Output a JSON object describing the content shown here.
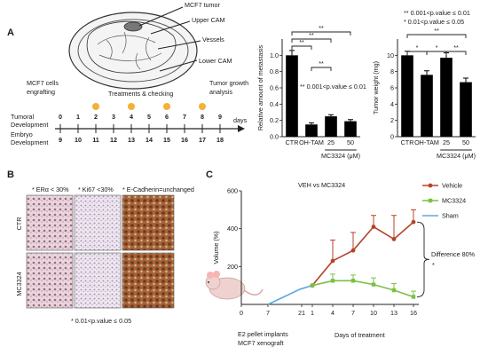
{
  "panel_labels": {
    "a": "A",
    "b": "B",
    "c": "C"
  },
  "diagram": {
    "labels": {
      "tumor": "MCF7 tumor",
      "upper": "Upper CAM",
      "vessels": "Vessels",
      "lower": "Lower CAM"
    }
  },
  "timeline": {
    "event1": "MCF7 cells",
    "event1b": "engrafting",
    "event2": "Treatments & checking",
    "event3": "Tumor growth",
    "event3b": "analysis",
    "row1_label": "Tumoral",
    "row1_label_b": "Development",
    "row2_label": "Embryo",
    "row2_label_b": "Development",
    "unit": "days",
    "tumoral_days": [
      "0",
      "1",
      "2",
      "3",
      "4",
      "5",
      "6",
      "7",
      "8",
      "9"
    ],
    "embryo_days": [
      "9",
      "10",
      "11",
      "12",
      "13",
      "14",
      "15",
      "16",
      "17",
      "18"
    ],
    "dots_at_index": [
      2,
      4,
      6,
      8
    ]
  },
  "chart_data": [
    {
      "type": "bar",
      "ylabel": "Relative amount of metastasis",
      "categories": [
        "CTR",
        "OH-TAM",
        "25",
        "50"
      ],
      "group_label": "MC3324 (μM)",
      "values": [
        1.0,
        0.15,
        0.25,
        0.19
      ],
      "errors": [
        0.06,
        0.02,
        0.02,
        0.02
      ],
      "ylim": [
        0,
        1.2
      ],
      "yticks": [
        "0.0",
        "0.2",
        "0.4",
        "0.6",
        "0.8",
        "1.0"
      ],
      "color": "#000000",
      "significance": [
        "**",
        "**",
        "**",
        "**"
      ],
      "annotation": "** 0.001<p.value ≤ 0.01"
    },
    {
      "type": "bar",
      "ylabel": "Tumor weight (mg)",
      "categories": [
        "CTR",
        "OH-TAM",
        "25",
        "50"
      ],
      "group_label": "MC3324 (μM)",
      "values": [
        10.0,
        7.6,
        9.7,
        6.7
      ],
      "errors": [
        0.5,
        0.5,
        0.6,
        0.5
      ],
      "ylim": [
        0,
        12
      ],
      "yticks": [
        "0",
        "2",
        "4",
        "6",
        "8",
        "10"
      ],
      "color": "#000000",
      "significance": [
        "**",
        "*",
        "*",
        "**"
      ],
      "legend_lines": [
        "** 0.001<p.value ≤ 0.01",
        "* 0.01<p.value ≤ 0.05"
      ]
    },
    {
      "type": "line",
      "title": "VEH vs MC3324",
      "ylabel": "Volume (%)",
      "xlabel": "Days of treatment",
      "xlabel2_a": "E2 pellet implants",
      "xlabel2_b": "MCF7 xenograft",
      "yticks": [
        "200",
        "400",
        "600"
      ],
      "pre_ticks": [
        "0",
        "7",
        "21"
      ],
      "days": [
        "1",
        "4",
        "7",
        "10",
        "13",
        "16"
      ],
      "series": [
        {
          "name": "Vehicle",
          "color": "#b5432a",
          "values": [
            100,
            230,
            285,
            410,
            345,
            435
          ],
          "err": [
            0,
            110,
            95,
            60,
            125,
            65
          ]
        },
        {
          "name": "MC3324",
          "color": "#7bc043",
          "values": [
            100,
            125,
            125,
            105,
            75,
            40
          ],
          "err": [
            0,
            35,
            30,
            35,
            35,
            30
          ]
        },
        {
          "name": "Sham",
          "color": "#5aa9e6",
          "values": [
            0,
            40,
            80,
            100
          ]
        }
      ],
      "difference_label": "Difference 80%",
      "difference_mark": "*"
    }
  ],
  "panel_b": {
    "headers": [
      "* ERα < 30%",
      "* Ki67 <30%",
      "* E-Cadherin=unchanged"
    ],
    "rows": [
      "CTR",
      "MC3324"
    ],
    "footnote": "* 0.01<p.value ≤ 0.05"
  }
}
